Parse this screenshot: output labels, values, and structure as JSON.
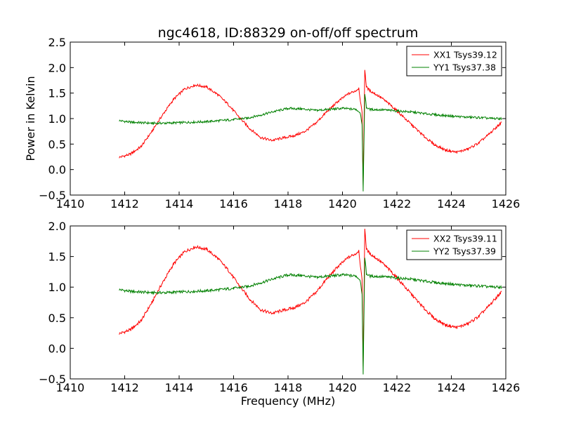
{
  "figure": {
    "title": "ngc4618, ID:88329 on-off/off spectrum",
    "xlabel": "Frequency (MHz)",
    "ylabel": "Power in Kelvin"
  },
  "chart_data": [
    {
      "type": "line",
      "title": "ngc4618, ID:88329 on-off/off spectrum",
      "xlabel": "",
      "ylabel": "Power in Kelvin",
      "xlim": [
        1410,
        1426
      ],
      "ylim": [
        -0.5,
        2.5
      ],
      "xticks": [
        "1410",
        "1412",
        "1414",
        "1416",
        "1418",
        "1420",
        "1422",
        "1424",
        "1426"
      ],
      "yticks": [
        "−0.5",
        "0.0",
        "0.5",
        "1.0",
        "1.5",
        "2.0",
        "2.5"
      ],
      "legend": {
        "position": "top-right"
      },
      "series": [
        {
          "name": "XX1 Tsys39.12",
          "color": "#ff0000",
          "x": [
            1411.8,
            1412.2,
            1412.6,
            1413.0,
            1413.4,
            1413.8,
            1414.2,
            1414.6,
            1415.0,
            1415.4,
            1415.8,
            1416.2,
            1416.6,
            1417.0,
            1417.4,
            1417.8,
            1418.2,
            1418.6,
            1419.0,
            1419.4,
            1419.8,
            1420.2,
            1420.5,
            1420.6,
            1420.72,
            1420.76,
            1420.82,
            1420.88,
            1421.0,
            1421.4,
            1421.8,
            1422.2,
            1422.6,
            1423.0,
            1423.4,
            1423.8,
            1424.2,
            1424.6,
            1425.0,
            1425.4,
            1425.85
          ],
          "y": [
            0.24,
            0.3,
            0.45,
            0.75,
            1.08,
            1.38,
            1.58,
            1.66,
            1.62,
            1.48,
            1.28,
            1.03,
            0.8,
            0.63,
            0.57,
            0.62,
            0.66,
            0.74,
            0.9,
            1.12,
            1.32,
            1.48,
            1.55,
            1.6,
            1.1,
            -0.3,
            1.97,
            1.62,
            1.55,
            1.42,
            1.25,
            1.05,
            0.85,
            0.65,
            0.48,
            0.38,
            0.34,
            0.4,
            0.52,
            0.7,
            0.93
          ]
        },
        {
          "name": "YY1 Tsys37.38",
          "color": "#008000",
          "x": [
            1411.8,
            1412.2,
            1412.6,
            1413.0,
            1413.5,
            1414.0,
            1414.5,
            1415.0,
            1415.5,
            1416.0,
            1416.5,
            1417.0,
            1417.5,
            1418.0,
            1418.5,
            1419.0,
            1419.5,
            1420.0,
            1420.5,
            1420.65,
            1420.72,
            1420.76,
            1420.82,
            1420.88,
            1421.0,
            1421.5,
            1422.0,
            1422.5,
            1423.0,
            1423.5,
            1424.0,
            1424.5,
            1425.0,
            1425.5,
            1425.85
          ],
          "y": [
            0.96,
            0.93,
            0.92,
            0.91,
            0.91,
            0.92,
            0.93,
            0.94,
            0.96,
            0.98,
            1.01,
            1.07,
            1.14,
            1.2,
            1.19,
            1.16,
            1.18,
            1.2,
            1.18,
            1.12,
            0.9,
            -0.45,
            1.5,
            1.22,
            1.18,
            1.17,
            1.15,
            1.13,
            1.1,
            1.07,
            1.05,
            1.03,
            1.02,
            1.0,
            1.0
          ]
        }
      ]
    },
    {
      "type": "line",
      "title": "",
      "xlabel": "Frequency (MHz)",
      "ylabel": "",
      "xlim": [
        1410,
        1426
      ],
      "ylim": [
        -0.5,
        2.0
      ],
      "xticks": [
        "1410",
        "1412",
        "1414",
        "1416",
        "1418",
        "1420",
        "1422",
        "1424",
        "1426"
      ],
      "yticks": [
        "−0.5",
        "0.0",
        "0.5",
        "1.0",
        "1.5",
        "2.0"
      ],
      "legend": {
        "position": "top-right"
      },
      "series": [
        {
          "name": "XX2 Tsys39.11",
          "color": "#ff0000",
          "x": [
            1411.8,
            1412.2,
            1412.6,
            1413.0,
            1413.4,
            1413.8,
            1414.2,
            1414.6,
            1415.0,
            1415.4,
            1415.8,
            1416.2,
            1416.6,
            1417.0,
            1417.4,
            1417.8,
            1418.2,
            1418.6,
            1419.0,
            1419.4,
            1419.8,
            1420.2,
            1420.5,
            1420.6,
            1420.72,
            1420.76,
            1420.82,
            1420.88,
            1421.0,
            1421.4,
            1421.8,
            1422.2,
            1422.6,
            1423.0,
            1423.4,
            1423.8,
            1424.2,
            1424.6,
            1425.0,
            1425.4,
            1425.85
          ],
          "y": [
            0.24,
            0.3,
            0.45,
            0.75,
            1.08,
            1.38,
            1.58,
            1.66,
            1.62,
            1.48,
            1.28,
            1.03,
            0.8,
            0.63,
            0.57,
            0.62,
            0.66,
            0.74,
            0.9,
            1.12,
            1.32,
            1.48,
            1.55,
            1.6,
            1.1,
            -0.3,
            1.97,
            1.62,
            1.55,
            1.42,
            1.25,
            1.05,
            0.85,
            0.65,
            0.48,
            0.38,
            0.34,
            0.4,
            0.52,
            0.7,
            0.93
          ]
        },
        {
          "name": "YY2 Tsys37.39",
          "color": "#008000",
          "x": [
            1411.8,
            1412.2,
            1412.6,
            1413.0,
            1413.5,
            1414.0,
            1414.5,
            1415.0,
            1415.5,
            1416.0,
            1416.5,
            1417.0,
            1417.5,
            1418.0,
            1418.5,
            1419.0,
            1419.5,
            1420.0,
            1420.5,
            1420.65,
            1420.72,
            1420.76,
            1420.82,
            1420.88,
            1421.0,
            1421.5,
            1422.0,
            1422.5,
            1423.0,
            1423.5,
            1424.0,
            1424.5,
            1425.0,
            1425.5,
            1425.85
          ],
          "y": [
            0.96,
            0.93,
            0.92,
            0.91,
            0.91,
            0.92,
            0.93,
            0.94,
            0.96,
            0.98,
            1.01,
            1.07,
            1.14,
            1.2,
            1.19,
            1.16,
            1.18,
            1.2,
            1.18,
            1.12,
            0.9,
            -0.45,
            1.5,
            1.22,
            1.18,
            1.17,
            1.15,
            1.13,
            1.1,
            1.07,
            1.05,
            1.03,
            1.02,
            1.0,
            1.0
          ]
        }
      ]
    }
  ]
}
